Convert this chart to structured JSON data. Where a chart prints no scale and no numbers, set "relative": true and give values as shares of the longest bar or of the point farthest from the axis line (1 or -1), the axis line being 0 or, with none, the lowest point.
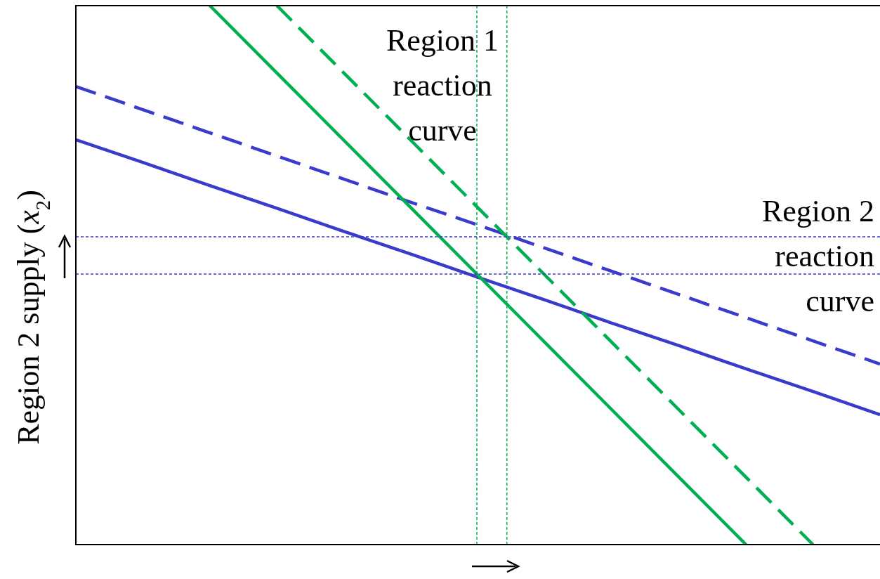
{
  "chart_data": {
    "type": "line",
    "relative": true,
    "ylabel": "Region 2 supply  (x$_{2}$)",
    "tick_labels": false,
    "marker": "none",
    "categories": [
      null,
      null,
      null,
      null,
      null,
      null,
      null,
      null,
      null,
      null,
      null,
      null,
      null
    ],
    "series": [
      {
        "color": "#3a3acc",
        "line_style": "solid",
        "values": [
          0.751,
          0.709,
          0.666,
          0.624,
          0.581,
          0.539,
          0.496,
          0.454,
          0.411,
          0.369,
          0.326,
          0.284,
          0.241
        ]
      },
      {
        "color": "#3a3acc",
        "line_style": "dashed",
        "values": [
          0.85,
          0.807,
          0.764,
          0.721,
          0.678,
          0.635,
          0.593,
          0.55,
          0.507,
          0.464,
          0.421,
          0.378,
          0.335
        ]
      },
      {
        "color": "#00b050",
        "line_style": "solid",
        "values": [
          null,
          null,
          1,
          0.875,
          0.75,
          0.625,
          0.5,
          0.375,
          0.25,
          0.125,
          0,
          null,
          null
        ]
      },
      {
        "color": "#00b050",
        "line_style": "dashed",
        "values": [
          null,
          null,
          null,
          1,
          0.875,
          0.75,
          0.625,
          0.5,
          0.375,
          0.25,
          0.125,
          0,
          null
        ]
      },
      {
        "color": "#3a3acc",
        "line_style": "dotted",
        "values": [
          0.571,
          0.571,
          0.571,
          0.571,
          0.571,
          0.571,
          0.571,
          0.571,
          0.571,
          0.571,
          0.571,
          0.571,
          0.571
        ]
      },
      {
        "color": "#3a3acc",
        "line_style": "dotted",
        "values": [
          0.502,
          0.502,
          0.502,
          0.502,
          0.502,
          0.502,
          0.502,
          0.502,
          0.502,
          0.502,
          0.502,
          0.502,
          0.502
        ]
      }
    ],
    "annotations": [
      "Region 1\nreaction\ncurve",
      "Region 2\nreaction\ncurve"
    ]
  }
}
